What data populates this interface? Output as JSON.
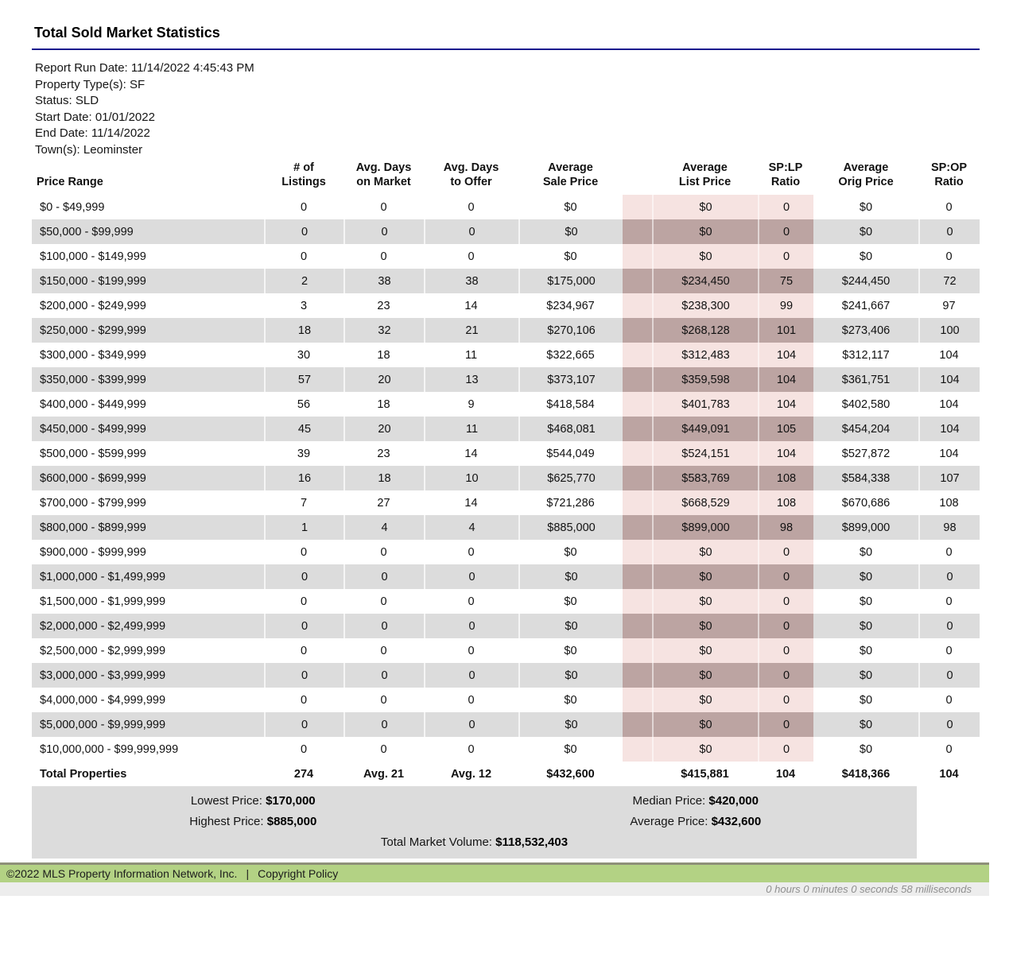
{
  "title": "Total Sold Market Statistics",
  "meta": [
    {
      "label": "Report Run Date:",
      "value": "11/14/2022 4:45:43 PM"
    },
    {
      "label": "Property Type(s):",
      "value": "SF"
    },
    {
      "label": "Status:",
      "value": "SLD"
    },
    {
      "label": "Start Date:",
      "value": "01/01/2022"
    },
    {
      "label": "End Date:",
      "value": "11/14/2022"
    },
    {
      "label": "Town(s):",
      "value": "Leominster"
    }
  ],
  "table": {
    "columns": [
      "Price Range",
      "# of\nListings",
      "Avg. Days\non Market",
      "Avg. Days\nto Offer",
      "Average\nSale Price",
      "Average\nList Price",
      "SP:LP\nRatio",
      "Average\nOrig Price",
      "SP:OP\nRatio"
    ],
    "rows": [
      {
        "range": "$0 - $49,999",
        "listings": "0",
        "dom": "0",
        "dto": "0",
        "sale": "$0",
        "list": "$0",
        "splp": "0",
        "orig": "$0",
        "spop": "0"
      },
      {
        "range": "$50,000 - $99,999",
        "listings": "0",
        "dom": "0",
        "dto": "0",
        "sale": "$0",
        "list": "$0",
        "splp": "0",
        "orig": "$0",
        "spop": "0"
      },
      {
        "range": "$100,000 - $149,999",
        "listings": "0",
        "dom": "0",
        "dto": "0",
        "sale": "$0",
        "list": "$0",
        "splp": "0",
        "orig": "$0",
        "spop": "0"
      },
      {
        "range": "$150,000 - $199,999",
        "listings": "2",
        "dom": "38",
        "dto": "38",
        "sale": "$175,000",
        "list": "$234,450",
        "splp": "75",
        "orig": "$244,450",
        "spop": "72"
      },
      {
        "range": "$200,000 - $249,999",
        "listings": "3",
        "dom": "23",
        "dto": "14",
        "sale": "$234,967",
        "list": "$238,300",
        "splp": "99",
        "orig": "$241,667",
        "spop": "97"
      },
      {
        "range": "$250,000 - $299,999",
        "listings": "18",
        "dom": "32",
        "dto": "21",
        "sale": "$270,106",
        "list": "$268,128",
        "splp": "101",
        "orig": "$273,406",
        "spop": "100"
      },
      {
        "range": "$300,000 - $349,999",
        "listings": "30",
        "dom": "18",
        "dto": "11",
        "sale": "$322,665",
        "list": "$312,483",
        "splp": "104",
        "orig": "$312,117",
        "spop": "104"
      },
      {
        "range": "$350,000 - $399,999",
        "listings": "57",
        "dom": "20",
        "dto": "13",
        "sale": "$373,107",
        "list": "$359,598",
        "splp": "104",
        "orig": "$361,751",
        "spop": "104"
      },
      {
        "range": "$400,000 - $449,999",
        "listings": "56",
        "dom": "18",
        "dto": "9",
        "sale": "$418,584",
        "list": "$401,783",
        "splp": "104",
        "orig": "$402,580",
        "spop": "104"
      },
      {
        "range": "$450,000 - $499,999",
        "listings": "45",
        "dom": "20",
        "dto": "11",
        "sale": "$468,081",
        "list": "$449,091",
        "splp": "105",
        "orig": "$454,204",
        "spop": "104"
      },
      {
        "range": "$500,000 - $599,999",
        "listings": "39",
        "dom": "23",
        "dto": "14",
        "sale": "$544,049",
        "list": "$524,151",
        "splp": "104",
        "orig": "$527,872",
        "spop": "104"
      },
      {
        "range": "$600,000 - $699,999",
        "listings": "16",
        "dom": "18",
        "dto": "10",
        "sale": "$625,770",
        "list": "$583,769",
        "splp": "108",
        "orig": "$584,338",
        "spop": "107"
      },
      {
        "range": "$700,000 - $799,999",
        "listings": "7",
        "dom": "27",
        "dto": "14",
        "sale": "$721,286",
        "list": "$668,529",
        "splp": "108",
        "orig": "$670,686",
        "spop": "108"
      },
      {
        "range": "$800,000 - $899,999",
        "listings": "1",
        "dom": "4",
        "dto": "4",
        "sale": "$885,000",
        "list": "$899,000",
        "splp": "98",
        "orig": "$899,000",
        "spop": "98"
      },
      {
        "range": "$900,000 - $999,999",
        "listings": "0",
        "dom": "0",
        "dto": "0",
        "sale": "$0",
        "list": "$0",
        "splp": "0",
        "orig": "$0",
        "spop": "0"
      },
      {
        "range": "$1,000,000 - $1,499,999",
        "listings": "0",
        "dom": "0",
        "dto": "0",
        "sale": "$0",
        "list": "$0",
        "splp": "0",
        "orig": "$0",
        "spop": "0"
      },
      {
        "range": "$1,500,000 - $1,999,999",
        "listings": "0",
        "dom": "0",
        "dto": "0",
        "sale": "$0",
        "list": "$0",
        "splp": "0",
        "orig": "$0",
        "spop": "0"
      },
      {
        "range": "$2,000,000 - $2,499,999",
        "listings": "0",
        "dom": "0",
        "dto": "0",
        "sale": "$0",
        "list": "$0",
        "splp": "0",
        "orig": "$0",
        "spop": "0"
      },
      {
        "range": "$2,500,000 - $2,999,999",
        "listings": "0",
        "dom": "0",
        "dto": "0",
        "sale": "$0",
        "list": "$0",
        "splp": "0",
        "orig": "$0",
        "spop": "0"
      },
      {
        "range": "$3,000,000 - $3,999,999",
        "listings": "0",
        "dom": "0",
        "dto": "0",
        "sale": "$0",
        "list": "$0",
        "splp": "0",
        "orig": "$0",
        "spop": "0"
      },
      {
        "range": "$4,000,000 - $4,999,999",
        "listings": "0",
        "dom": "0",
        "dto": "0",
        "sale": "$0",
        "list": "$0",
        "splp": "0",
        "orig": "$0",
        "spop": "0"
      },
      {
        "range": "$5,000,000 - $9,999,999",
        "listings": "0",
        "dom": "0",
        "dto": "0",
        "sale": "$0",
        "list": "$0",
        "splp": "0",
        "orig": "$0",
        "spop": "0"
      },
      {
        "range": "$10,000,000 - $99,999,999",
        "listings": "0",
        "dom": "0",
        "dto": "0",
        "sale": "$0",
        "list": "$0",
        "splp": "0",
        "orig": "$0",
        "spop": "0"
      }
    ],
    "totals": {
      "range": "Total Properties",
      "listings": "274",
      "dom": "Avg. 21",
      "dto": "Avg. 12",
      "sale": "$432,600",
      "list": "$415,881",
      "splp": "104",
      "orig": "$418,366",
      "spop": "104"
    }
  },
  "summary": {
    "lowest": {
      "label": "Lowest Price:",
      "value": "$170,000"
    },
    "median": {
      "label": "Median Price:",
      "value": "$420,000"
    },
    "highest": {
      "label": "Highest Price:",
      "value": "$885,000"
    },
    "average": {
      "label": "Average Price:",
      "value": "$432,600"
    },
    "volume": {
      "label": "Total Market Volume:",
      "value": "$118,532,403"
    }
  },
  "footer": {
    "copyright": "©2022 MLS Property Information Network, Inc.",
    "separator": "|",
    "policy_link": "Copyright Policy",
    "elapsed": "0 hours 0 minutes 0 seconds 58 milliseconds"
  },
  "colors": {
    "title_rule": "#1b1b8e",
    "row_stripe": "#dcdcdc",
    "highlight_pink": "#f6e3e1",
    "highlight_pink_on_stripe": "#bca4a2",
    "summary_bg": "#dcdcdc",
    "copyright_bar_green": "#b3d284",
    "copyright_bar_border": "#8e9079",
    "timing_bar_bg": "#ededed",
    "timing_text": "#8f8f8f"
  }
}
